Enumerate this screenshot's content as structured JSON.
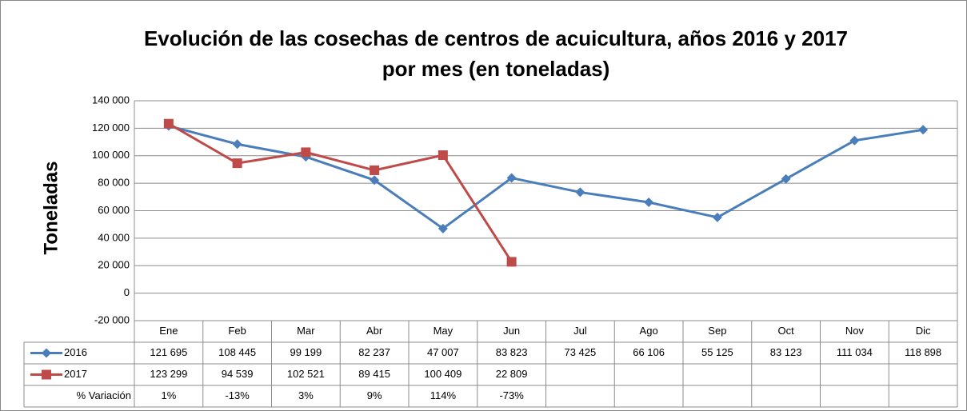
{
  "chart_data": {
    "type": "line",
    "title": [
      "Evolución de las cosechas de centros de acuicultura, años 2016 y 2017",
      "por mes (en toneladas)"
    ],
    "y_label": "Toneladas",
    "categories": [
      "Ene",
      "Feb",
      "Mar",
      "Abr",
      "May",
      "Jun",
      "Jul",
      "Ago",
      "Sep",
      "Oct",
      "Nov",
      "Dic"
    ],
    "series": [
      {
        "name": "2016",
        "color": "#4a7ebb",
        "marker": "diamond",
        "values": [
          121695,
          108445,
          99199,
          82237,
          47007,
          83823,
          73425,
          66106,
          55125,
          83123,
          111034,
          118898
        ],
        "value_labels": [
          "121 695",
          "108 445",
          "99 199",
          "82 237",
          "47 007",
          "83 823",
          "73 425",
          "66 106",
          "55 125",
          "83 123",
          "111 034",
          "118 898"
        ]
      },
      {
        "name": "2017",
        "color": "#be4b48",
        "marker": "square",
        "values": [
          123299,
          94539,
          102521,
          89415,
          100409,
          22809,
          null,
          null,
          null,
          null,
          null,
          null
        ],
        "value_labels": [
          "123 299",
          "94 539",
          "102 521",
          "89 415",
          "100 409",
          "22 809",
          null,
          null,
          null,
          null,
          null,
          null
        ]
      }
    ],
    "variation": {
      "name": "% Variación",
      "values": [
        1,
        -13,
        3,
        9,
        114,
        -73
      ],
      "value_labels": [
        "1%",
        "-13%",
        "3%",
        "9%",
        "114%",
        "-73%"
      ]
    },
    "ylim": [
      -20000,
      140000
    ],
    "yticks": [
      {
        "value": -20000,
        "label": "-20 000"
      },
      0,
      {
        "value": 20000,
        "label": "20 000"
      },
      {
        "value": 40000,
        "label": "40 000"
      },
      {
        "value": 60000,
        "label": "60 000"
      },
      {
        "value": 80000,
        "label": "80 000"
      },
      {
        "value": 100000,
        "label": "100 000"
      },
      {
        "value": 120000,
        "label": "120 000"
      },
      {
        "value": 140000,
        "label": "140 000"
      }
    ],
    "grid": true
  }
}
